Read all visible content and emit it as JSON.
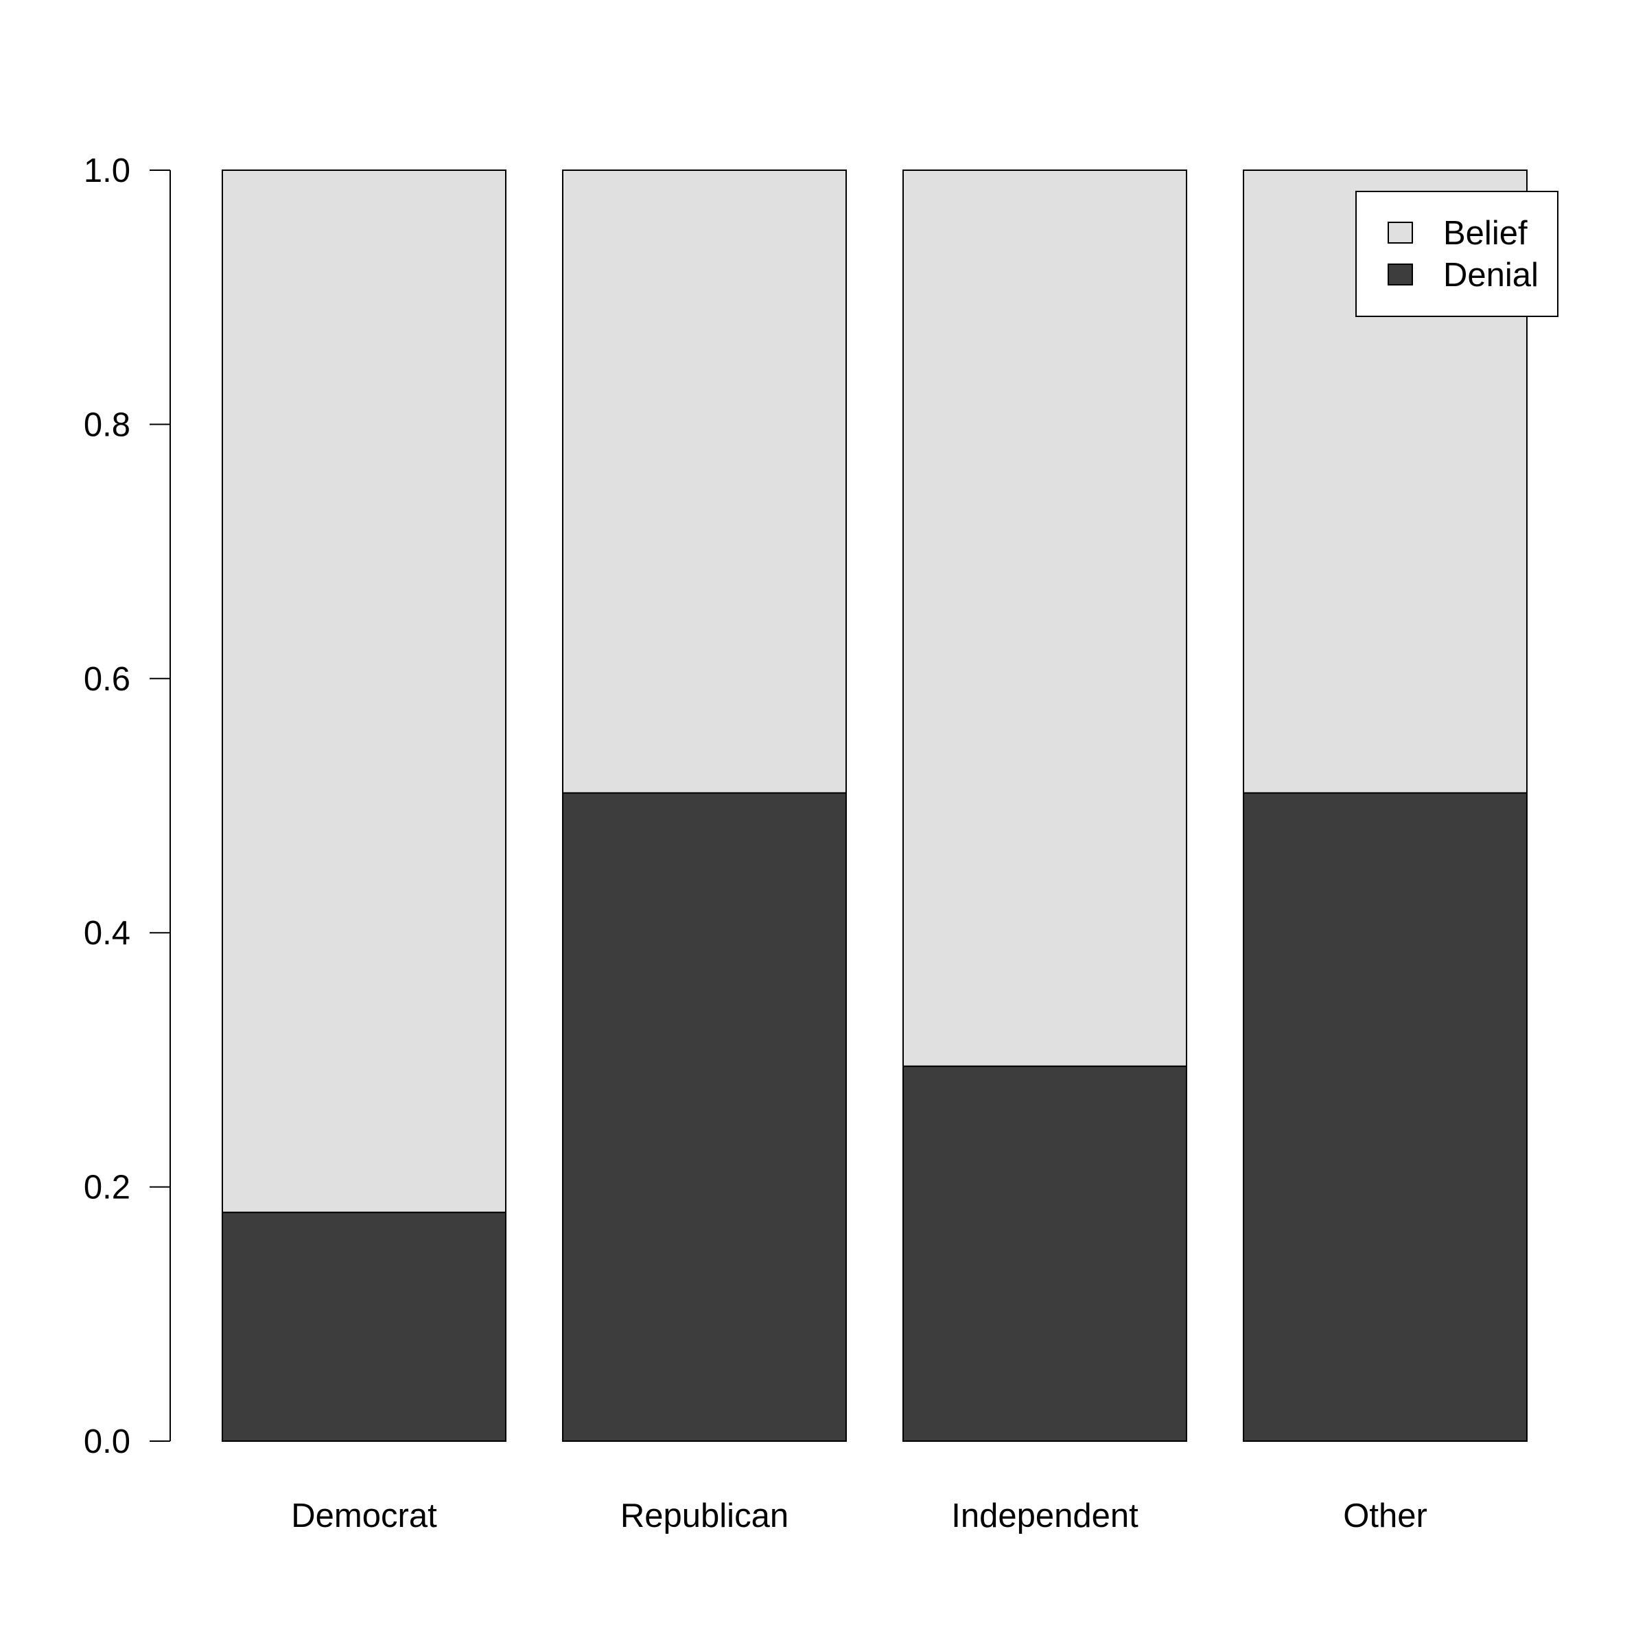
{
  "chart_data": {
    "type": "bar",
    "stacked": true,
    "categories": [
      "Democrat",
      "Republican",
      "Independent",
      "Other"
    ],
    "series": [
      {
        "name": "Denial",
        "values": [
          0.18,
          0.51,
          0.295,
          0.51
        ],
        "color": "#3d3d3d"
      },
      {
        "name": "Belief",
        "values": [
          0.82,
          0.49,
          0.705,
          0.49
        ],
        "color": "#e0e0e0"
      }
    ],
    "legend": {
      "position": "top-right",
      "entries": [
        {
          "label": "Belief",
          "color": "#e0e0e0"
        },
        {
          "label": "Denial",
          "color": "#3d3d3d"
        }
      ]
    },
    "y_ticks": [
      "0.0",
      "0.2",
      "0.4",
      "0.6",
      "0.8",
      "1.0"
    ],
    "ylim": [
      0,
      1
    ],
    "grid": false,
    "title": "",
    "xlabel": "",
    "ylabel": ""
  }
}
